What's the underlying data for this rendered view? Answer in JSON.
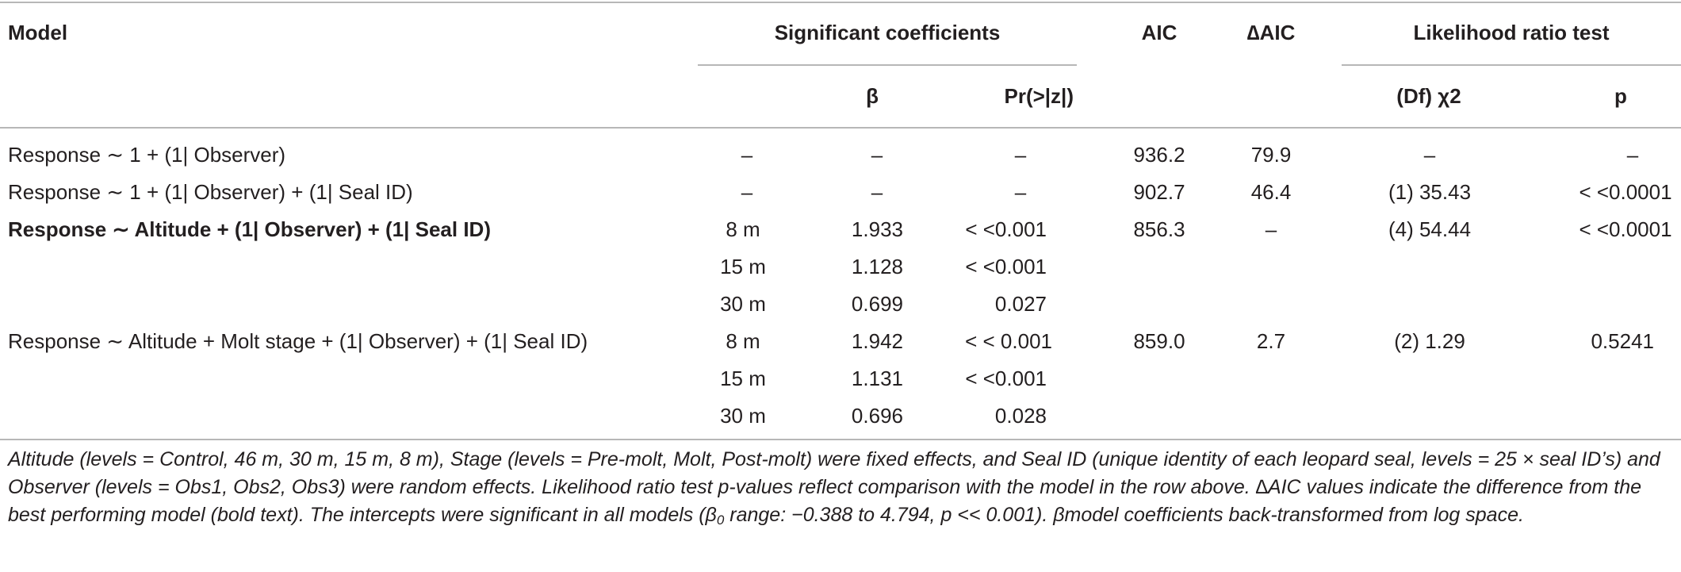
{
  "headers": {
    "model": "Model",
    "significant_coefficients": "Significant coefficients",
    "aic": "AIC",
    "delta_aic": "∆AIC",
    "lrt": "Likelihood ratio test",
    "beta": "β",
    "pr": "Pr(>|z|)",
    "df_chi2": "(Df) χ2",
    "p": "p"
  },
  "rows": [
    {
      "model": "Response ∼ 1 + (1| Observer)",
      "level": "–",
      "beta": "–",
      "pr": "–",
      "aic": "936.2",
      "daic": "79.9",
      "chi": "–",
      "p": "–"
    },
    {
      "model": "Response ∼ 1 + (1| Observer) + (1| Seal ID)",
      "level": "–",
      "beta": "–",
      "pr": "–",
      "aic": "902.7",
      "daic": "46.4",
      "chi": "(1) 35.43",
      "p": "< <0.0001"
    },
    {
      "model": "Response ∼ Altitude + (1| Observer) + (1| Seal ID)",
      "level": "8 m",
      "beta": "1.933",
      "pr": "< <0.001",
      "aic": "856.3",
      "daic": "–",
      "chi": "(4) 54.44",
      "p": "< <0.0001"
    },
    {
      "model": "",
      "level": "15 m",
      "beta": "1.128",
      "pr": "< <0.001",
      "aic": "",
      "daic": "",
      "chi": "",
      "p": ""
    },
    {
      "model": "",
      "level": "30 m",
      "beta": "0.699",
      "pr": "0.027",
      "aic": "",
      "daic": "",
      "chi": "",
      "p": ""
    },
    {
      "model": "Response ∼ Altitude + Molt stage + (1| Observer) + (1| Seal ID)",
      "level": "8 m",
      "beta": "1.942",
      "pr": "< < 0.001",
      "aic": "859.0",
      "daic": "2.7",
      "chi": "(2) 1.29",
      "p": "0.5241"
    },
    {
      "model": "",
      "level": "15 m",
      "beta": "1.131",
      "pr": "< <0.001",
      "aic": "",
      "daic": "",
      "chi": "",
      "p": ""
    },
    {
      "model": "",
      "level": "30 m",
      "beta": "0.696",
      "pr": "0.028",
      "aic": "",
      "daic": "",
      "chi": "",
      "p": ""
    }
  ],
  "footnote": {
    "part1": "Altitude (levels = Control, 46 m, 30 m, 15 m, 8 m), Stage (levels = Pre-molt, Molt, Post-molt) were fixed effects, and Seal ID (unique identity of each leopard seal, levels = 25 × seal ID’s) and Observer (levels = Obs1, Obs2, Obs3) were random effects. Likelihood ratio test p-values reflect comparison with the model in the row above. ∆AIC values indicate the difference from the best performing model (bold text). The intercepts were significant in all models (β",
    "sub": "0",
    "part2": " range: −0.388 to 4.794, p << 0.001). βmodel coefficients back-transformed from log space."
  }
}
